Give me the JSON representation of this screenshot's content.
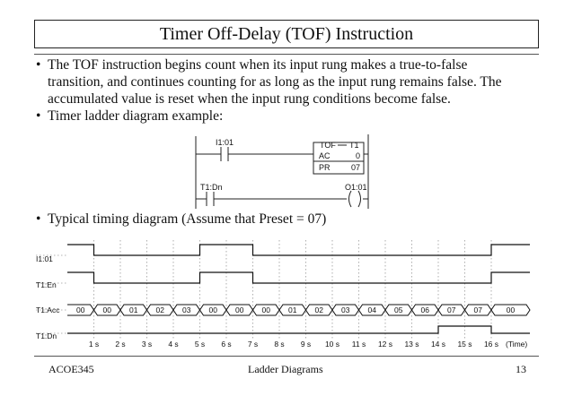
{
  "slide": {
    "title": "Timer Off-Delay (TOF) Instruction",
    "bullets": [
      {
        "lines": [
          "The TOF instruction begins count when its input rung makes a true-to-false",
          "transition, and continues counting for as long as the input rung remains false. The",
          "accumulated value is reset when the input rung conditions become false."
        ]
      },
      {
        "lines": [
          "Timer ladder diagram example:"
        ]
      },
      {
        "lines": [
          "Typical timing diagram (Assume that Preset = 07)"
        ]
      }
    ],
    "bullet_glyph": "•"
  },
  "ladder": {
    "contact1_label": "I1:01",
    "contact2_label": "T1:Dn",
    "timer_block": {
      "header_left": "TOF",
      "header_right": "T1",
      "ac_label": "AC",
      "ac_value": "0",
      "pr_label": "PR",
      "pr_value": "07"
    },
    "coil_label": "O1:01"
  },
  "timing": {
    "signals": [
      {
        "label": "I1:01",
        "levels": [
          1,
          0,
          0,
          0,
          0,
          1,
          1,
          0,
          0,
          0,
          0,
          0,
          0,
          0,
          0,
          0,
          1,
          1
        ]
      },
      {
        "label": "T1:En",
        "levels": [
          1,
          0,
          0,
          0,
          0,
          1,
          1,
          0,
          0,
          0,
          0,
          0,
          0,
          0,
          0,
          0,
          1,
          1
        ]
      },
      {
        "label": "T1:Dn",
        "levels": [
          0,
          0,
          0,
          0,
          0,
          0,
          0,
          0,
          0,
          0,
          0,
          0,
          0,
          0,
          1,
          1,
          0,
          0
        ]
      }
    ],
    "bus_label": "T1:Acc",
    "bus_values": [
      "00",
      "00",
      "01",
      "02",
      "03",
      "00",
      "00",
      "00",
      "01",
      "02",
      "03",
      "04",
      "05",
      "06",
      "07",
      "07",
      "00"
    ],
    "time_ticks": [
      "1 s",
      "2 s",
      "3 s",
      "4 s",
      "5 s",
      "6 s",
      "7 s",
      "8 s",
      "9 s",
      "10 s",
      "11 s",
      "12 s",
      "13 s",
      "14 s",
      "15 s",
      "16 s"
    ],
    "time_unit": "(Time)"
  },
  "footer": {
    "course": "ACOE345",
    "topic": "Ladder Diagrams",
    "page": "13"
  }
}
